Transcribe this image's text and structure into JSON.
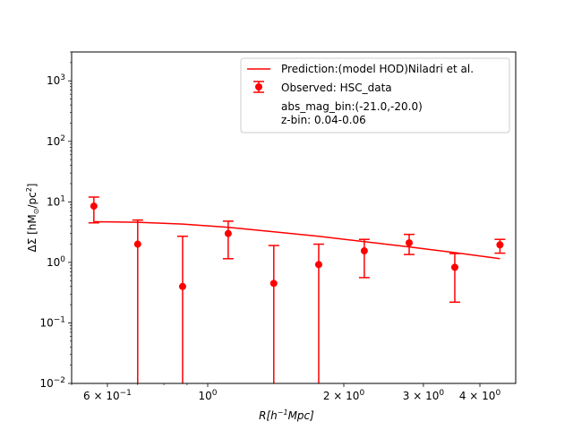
{
  "chart_data": {
    "type": "scatter",
    "xlabel": {
      "main": "R[h",
      "sup": "−1",
      "rest": "Mpc]"
    },
    "ylabel": {
      "main": "ΔΣ [hM",
      "sub": "⊙",
      "mid": "/pc",
      "sup": "2",
      "end": "]"
    },
    "xscale": "log",
    "yscale": "log",
    "xlim": [
      0.5,
      4.8
    ],
    "ylim": [
      0.01,
      3000
    ],
    "x_ticks": [
      {
        "value": 0.6,
        "base": "6 × 10",
        "exp": "−1"
      },
      {
        "value": 1.0,
        "base": "10",
        "exp": "0"
      },
      {
        "value": 2.0,
        "base": "2 × 10",
        "exp": "0"
      },
      {
        "value": 3.0,
        "base": "3 × 10",
        "exp": "0"
      },
      {
        "value": 4.0,
        "base": "4 × 10",
        "exp": "0"
      }
    ],
    "y_ticks": [
      {
        "value": 0.01,
        "base": "10",
        "exp": "−2"
      },
      {
        "value": 0.1,
        "base": "10",
        "exp": "−1"
      },
      {
        "value": 1,
        "base": "10",
        "exp": "0"
      },
      {
        "value": 10,
        "base": "10",
        "exp": "1"
      },
      {
        "value": 100,
        "base": "10",
        "exp": "2"
      },
      {
        "value": 1000,
        "base": "10",
        "exp": "3"
      }
    ],
    "grid": false,
    "legend_position": "top-right",
    "colors": {
      "series": "#ff0000"
    },
    "series": [
      {
        "name": "Prediction:(model HOD)Niladri et al.",
        "kind": "line",
        "x": [
          0.56,
          0.7,
          0.88,
          1.11,
          1.4,
          1.76,
          2.22,
          2.79,
          3.52,
          4.43
        ],
        "y": [
          4.7,
          4.6,
          4.3,
          3.8,
          3.2,
          2.7,
          2.2,
          1.8,
          1.45,
          1.15
        ]
      },
      {
        "name": "Observed: HSC_data",
        "kind": "errorbar",
        "x": [
          0.56,
          0.7,
          0.88,
          1.11,
          1.4,
          1.76,
          2.22,
          2.79,
          3.52,
          4.43
        ],
        "y": [
          8.5,
          2.0,
          0.4,
          3.0,
          0.45,
          0.92,
          1.55,
          2.1,
          0.83,
          1.95
        ],
        "y_lower": [
          4.5,
          0.001,
          0.001,
          1.15,
          0.001,
          0.001,
          0.56,
          1.35,
          0.22,
          1.42
        ],
        "y_upper": [
          12.0,
          5.0,
          2.7,
          4.8,
          1.9,
          2.0,
          2.4,
          2.9,
          1.4,
          2.4
        ]
      }
    ],
    "annotations": [
      "abs_mag_bin:(-21.0,-20.0)",
      "z-bin: 0.04-0.06"
    ]
  }
}
